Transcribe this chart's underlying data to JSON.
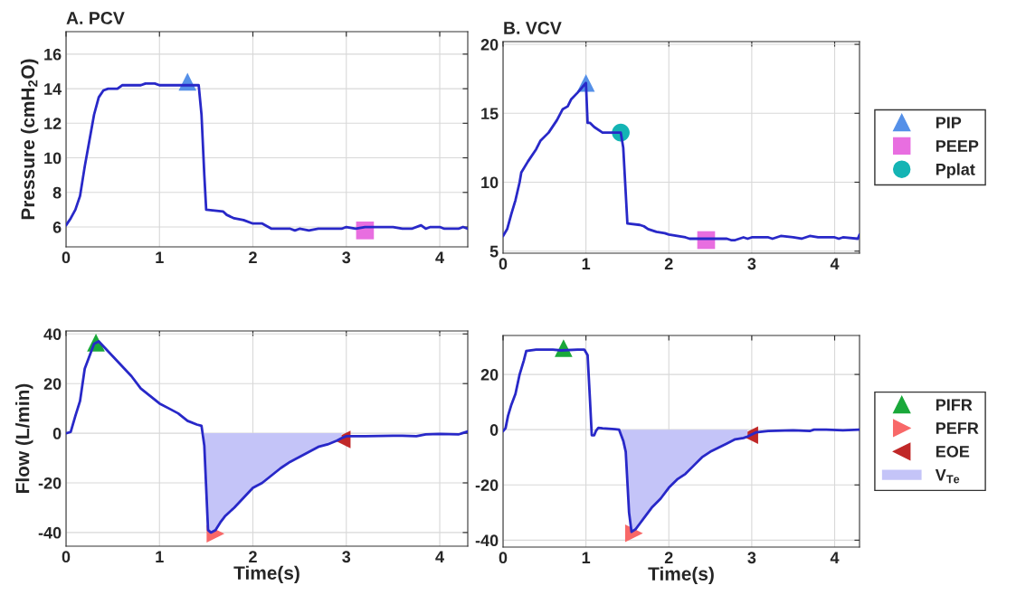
{
  "chart_data": [
    {
      "type": "line",
      "title": "A. PCV",
      "ylabel": "Pressure (cmH$_{2}$O)",
      "xlim": [
        0,
        4.3
      ],
      "xticks": [
        0,
        1,
        2,
        3,
        4
      ],
      "ylim": [
        4.85,
        17.3
      ],
      "yticks": [
        6,
        8,
        10,
        12,
        14,
        16
      ],
      "grid": true,
      "legend": false,
      "series": [
        {
          "color": "#2828c8",
          "x": [
            0,
            0.05,
            0.1,
            0.15,
            0.2,
            0.25,
            0.3,
            0.35,
            0.4,
            0.45,
            0.55,
            0.6,
            0.8,
            0.85,
            0.95,
            1.0,
            1.42,
            1.45,
            1.48,
            1.5,
            1.68,
            1.72,
            1.8,
            1.9,
            2.0,
            2.1,
            2.2,
            2.4,
            2.45,
            2.5,
            2.6,
            2.7,
            2.95,
            3.0,
            3.1,
            3.2,
            3.5,
            3.6,
            3.7,
            3.8,
            3.85,
            3.9,
            4.0,
            4.05,
            4.2,
            4.25,
            4.3
          ],
          "values": [
            6.1,
            6.5,
            7.0,
            7.8,
            9.5,
            11.0,
            12.5,
            13.5,
            13.9,
            14.0,
            14.0,
            14.2,
            14.2,
            14.3,
            14.3,
            14.2,
            14.2,
            12.5,
            9.0,
            7.0,
            6.9,
            6.7,
            6.5,
            6.4,
            6.2,
            6.2,
            5.9,
            5.9,
            5.8,
            5.9,
            5.8,
            5.9,
            5.9,
            6.0,
            5.9,
            6.0,
            6.0,
            5.9,
            5.9,
            6.1,
            5.9,
            6.0,
            6.0,
            5.9,
            5.9,
            6.0,
            5.9
          ]
        },
        {
          "type": "scatter",
          "marker": "triangle",
          "color": "#5590e8",
          "x": [
            1.3
          ],
          "values": [
            14.4
          ]
        },
        {
          "type": "scatter",
          "marker": "square",
          "color": "#e86ee0",
          "x": [
            3.2
          ],
          "values": [
            5.8
          ]
        }
      ]
    },
    {
      "type": "line",
      "title": "B. VCV",
      "xlim": [
        0,
        4.3
      ],
      "xticks": [
        0,
        1,
        2,
        3,
        4
      ],
      "ylim": [
        4.85,
        20.2
      ],
      "yticks": [
        5,
        10,
        15,
        20
      ],
      "grid": true,
      "legend": "right",
      "series": [
        {
          "color": "#2828c8",
          "x": [
            0,
            0.05,
            0.1,
            0.15,
            0.2,
            0.22,
            0.3,
            0.4,
            0.45,
            0.55,
            0.65,
            0.72,
            0.78,
            0.82,
            0.9,
            1.0,
            1.02,
            1.05,
            1.1,
            1.2,
            1.42,
            1.45,
            1.5,
            1.65,
            1.7,
            1.75,
            1.85,
            1.95,
            2.0,
            2.1,
            2.2,
            2.25,
            2.7,
            2.75,
            2.8,
            2.9,
            2.95,
            3.0,
            3.2,
            3.25,
            3.35,
            3.5,
            3.6,
            3.7,
            3.8,
            4.0,
            4.05,
            4.1,
            4.28,
            4.3
          ],
          "values": [
            6.1,
            6.6,
            7.7,
            8.7,
            10.0,
            10.7,
            11.5,
            12.4,
            13.0,
            13.6,
            14.5,
            15.3,
            15.5,
            16.0,
            16.5,
            17.2,
            14.3,
            14.3,
            14.0,
            13.6,
            13.6,
            12.5,
            7.0,
            6.9,
            6.8,
            6.6,
            6.4,
            6.3,
            6.2,
            6.1,
            6.0,
            5.9,
            5.9,
            5.8,
            5.8,
            6.0,
            5.9,
            6.0,
            6.0,
            5.9,
            6.1,
            6.0,
            5.9,
            6.1,
            6.0,
            6.0,
            5.9,
            6.0,
            5.9,
            6.2
          ]
        },
        {
          "type": "scatter",
          "name": "PIP",
          "marker": "triangle",
          "color": "#5590e8",
          "x": [
            1.0
          ],
          "values": [
            17.2
          ]
        },
        {
          "type": "scatter",
          "name": "PEEP",
          "marker": "square",
          "color": "#e86ee0",
          "x": [
            2.45
          ],
          "values": [
            5.8
          ]
        },
        {
          "type": "scatter",
          "name": "Pplat",
          "marker": "circle",
          "color": "#14b4b4",
          "x": [
            1.42
          ],
          "values": [
            13.6
          ]
        }
      ]
    },
    {
      "type": "line",
      "xlabel": "Time(s)",
      "ylabel": "Flow (L/min)",
      "xlim": [
        0,
        4.3
      ],
      "xticks": [
        0,
        1,
        2,
        3,
        4
      ],
      "ylim": [
        -45.5,
        41.2
      ],
      "yticks": [
        -40,
        -20,
        0,
        20,
        40
      ],
      "grid": true,
      "legend": false,
      "series": [
        {
          "type": "area",
          "color": "#c4c4f8",
          "x": [
            1.48,
            1.52,
            1.55,
            1.6,
            1.65,
            1.7,
            1.8,
            1.9,
            2.0,
            2.1,
            2.2,
            2.3,
            2.4,
            2.5,
            2.6,
            2.7,
            2.8,
            2.9,
            2.95
          ],
          "values": [
            -5,
            -39,
            -40,
            -39,
            -36,
            -33.5,
            -30,
            -26,
            -22,
            -20,
            -17,
            -14,
            -11.5,
            -9.5,
            -7.5,
            -5.5,
            -4.5,
            -3,
            -2
          ]
        },
        {
          "color": "#2828c8",
          "x": [
            0,
            0.05,
            0.1,
            0.15,
            0.2,
            0.25,
            0.3,
            0.35,
            0.4,
            0.5,
            0.6,
            0.7,
            0.8,
            0.9,
            1.0,
            1.1,
            1.2,
            1.3,
            1.4,
            1.45,
            1.48,
            1.52,
            1.55,
            1.6,
            1.65,
            1.7,
            1.8,
            1.9,
            2.0,
            2.1,
            2.2,
            2.3,
            2.4,
            2.5,
            2.6,
            2.7,
            2.8,
            2.9,
            2.95,
            3.0,
            3.2,
            3.5,
            3.6,
            3.75,
            3.85,
            4.0,
            4.2,
            4.3
          ],
          "values": [
            0,
            0.5,
            7,
            13,
            26,
            31,
            36,
            37,
            35,
            31,
            27,
            23,
            18,
            15,
            12,
            10,
            8,
            5,
            3.5,
            3,
            -5,
            -39,
            -40,
            -39,
            -36,
            -33.5,
            -30,
            -26,
            -22,
            -20,
            -17,
            -14,
            -11.5,
            -9.5,
            -7.5,
            -5.5,
            -4.5,
            -3,
            -2,
            -1.2,
            -1.2,
            -1,
            -1,
            -1.2,
            -0.5,
            -0.3,
            -0.5,
            0.7
          ]
        },
        {
          "type": "scatter",
          "marker": "triangle",
          "color": "#1aa83a",
          "x": [
            0.32
          ],
          "values": [
            36.5
          ]
        },
        {
          "type": "scatter",
          "marker": "triangle-right",
          "color": "#f86868",
          "x": [
            1.6
          ],
          "values": [
            -40.5
          ]
        },
        {
          "type": "scatter",
          "marker": "triangle-left",
          "color": "#c02828",
          "x": [
            2.95
          ],
          "values": [
            -2.5
          ]
        }
      ]
    },
    {
      "type": "line",
      "xlabel": "Time(s)",
      "xlim": [
        0,
        4.3
      ],
      "xticks": [
        0,
        1,
        2,
        3,
        4
      ],
      "ylim": [
        -42.5,
        34.1
      ],
      "yticks": [
        -40,
        -20,
        0,
        20
      ],
      "grid": true,
      "legend": "right",
      "series": [
        {
          "color": "#2828c8",
          "x": [
            0,
            0.03,
            0.06,
            0.1,
            0.15,
            0.2,
            0.25,
            0.28,
            0.4,
            0.6,
            0.7,
            0.9,
            0.98,
            1.02,
            1.05,
            1.07,
            1.1,
            1.12,
            1.15,
            1.2,
            1.35,
            1.4,
            1.45,
            1.48,
            1.52,
            1.55,
            1.6,
            1.65,
            1.7,
            1.8,
            1.9,
            2.0,
            2.1,
            2.2,
            2.3,
            2.4,
            2.5,
            2.6,
            2.7,
            2.8,
            2.9,
            2.95,
            3.05,
            3.2,
            3.5,
            3.7,
            3.75,
            3.9,
            4.1,
            4.3
          ],
          "values": [
            -0.5,
            0.5,
            5,
            9,
            13,
            20,
            25,
            28.5,
            29,
            29,
            28.7,
            29,
            29,
            27,
            10,
            -2,
            -2,
            -0.5,
            0.7,
            0.5,
            0.2,
            0,
            -4,
            -8,
            -30,
            -37,
            -36,
            -34,
            -32,
            -28,
            -25,
            -21,
            -18,
            -16,
            -13,
            -10,
            -8,
            -6.5,
            -5,
            -3.5,
            -3,
            -2.5,
            -1,
            -0.5,
            -0.2,
            -0.5,
            0,
            0,
            -0.2,
            0
          ]
        },
        {
          "type": "scatter",
          "name": "PIFR",
          "marker": "triangle",
          "color": "#1aa83a",
          "x": [
            0.73
          ],
          "values": [
            29.5
          ]
        },
        {
          "type": "scatter",
          "name": "PEFR",
          "marker": "triangle-right",
          "color": "#f86868",
          "x": [
            1.58
          ],
          "values": [
            -37.5
          ]
        },
        {
          "type": "scatter",
          "name": "EOE",
          "marker": "triangle-left",
          "color": "#c02828",
          "x": [
            2.97
          ],
          "values": [
            -2
          ]
        },
        {
          "type": "area",
          "name": "V$_{Te}$",
          "color": "#c4c4f8",
          "x": [
            1.4,
            1.45,
            1.48,
            1.52,
            1.55,
            1.6,
            1.65,
            1.7,
            1.8,
            1.9,
            2.0,
            2.1,
            2.2,
            2.3,
            2.4,
            2.5,
            2.6,
            2.7,
            2.8,
            2.9,
            2.95
          ],
          "values": [
            0,
            -4,
            -8,
            -30,
            -37,
            -36,
            -34,
            -32,
            -28,
            -25,
            -21,
            -18,
            -16,
            -13,
            -10,
            -8,
            -6.5,
            -5,
            -3.5,
            -3,
            -2.5
          ]
        }
      ]
    }
  ]
}
